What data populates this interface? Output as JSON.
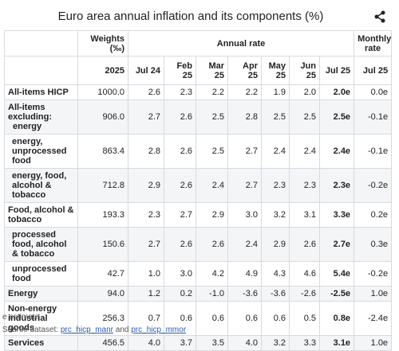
{
  "header": {
    "title": "Euro area annual inflation and its components (%)"
  },
  "table": {
    "group_headers": [
      "Weights (‰)",
      "Annual rate",
      "Monthly rate"
    ],
    "columns": [
      "2025",
      "Jul 24",
      "Feb 25",
      "Mar 25",
      "Apr 25",
      "May 25",
      "Jun 25",
      "Jul 25",
      "Jul 25"
    ],
    "rows": [
      {
        "label": "All-items HICP",
        "cells": [
          "1000.0",
          "2.6",
          "2.3",
          "2.2",
          "2.2",
          "1.9",
          "2.0",
          "2.0e",
          "0.0e"
        ]
      },
      {
        "label": "All-items excluding:",
        "sublabel": "energy",
        "cells": [
          "906.0",
          "2.7",
          "2.6",
          "2.5",
          "2.8",
          "2.5",
          "2.5",
          "2.5e",
          "-0.1e"
        ]
      },
      {
        "label": "energy, unprocessed food",
        "cells": [
          "863.4",
          "2.8",
          "2.6",
          "2.5",
          "2.7",
          "2.4",
          "2.4",
          "2.4e",
          "-0.1e"
        ]
      },
      {
        "label": "energy, food, alcohol & tobacco",
        "cells": [
          "712.8",
          "2.9",
          "2.6",
          "2.4",
          "2.7",
          "2.3",
          "2.3",
          "2.3e",
          "-0.2e"
        ]
      },
      {
        "label": "Food, alcohol & tobacco",
        "cells": [
          "193.3",
          "2.3",
          "2.7",
          "2.9",
          "3.0",
          "3.2",
          "3.1",
          "3.3e",
          "0.2e"
        ]
      },
      {
        "label": "processed food, alcohol & tobacco",
        "cells": [
          "150.6",
          "2.7",
          "2.6",
          "2.6",
          "2.4",
          "2.9",
          "2.6",
          "2.7e",
          "0.3e"
        ]
      },
      {
        "label": "unprocessed food",
        "cells": [
          "42.7",
          "1.0",
          "3.0",
          "4.2",
          "4.9",
          "4.3",
          "4.6",
          "5.4e",
          "-0.2e"
        ]
      },
      {
        "label": "Energy",
        "cells": [
          "94.0",
          "1.2",
          "0.2",
          "-1.0",
          "-3.6",
          "-3.6",
          "-2.6",
          "-2.5e",
          "1.0e"
        ]
      },
      {
        "label": "Non-energy industrial goods",
        "cells": [
          "256.3",
          "0.7",
          "0.6",
          "0.6",
          "0.6",
          "0.6",
          "0.5",
          "0.8e",
          "-2.4e"
        ]
      },
      {
        "label": "Services",
        "cells": [
          "456.5",
          "4.0",
          "3.7",
          "3.5",
          "4.0",
          "3.2",
          "3.3",
          "3.1e",
          "1.0e"
        ]
      }
    ]
  },
  "footer": {
    "note": "e estimate",
    "source_prefix": "Source dataset:",
    "links": [
      "prc_hicp_manr",
      "prc_hicp_mmor"
    ],
    "conjunction": "and"
  }
}
